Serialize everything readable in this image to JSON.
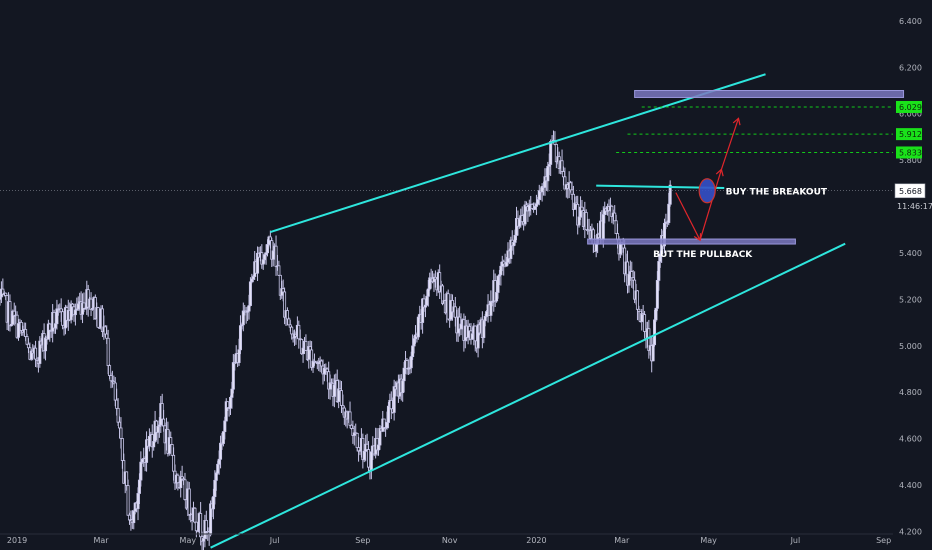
{
  "chart_data": {
    "type": "candlestick",
    "x_axis": {
      "range": [
        "2018-12-20",
        "2020-10-05"
      ],
      "ticks": [
        {
          "date": "2019-01-01",
          "label": "2019"
        },
        {
          "date": "2019-03-01",
          "label": "Mar"
        },
        {
          "date": "2019-05-01",
          "label": "May"
        },
        {
          "date": "2019-07-01",
          "label": "Jul"
        },
        {
          "date": "2019-09-01",
          "label": "Sep"
        },
        {
          "date": "2019-11-01",
          "label": "Nov"
        },
        {
          "date": "2020-01-01",
          "label": "2020"
        },
        {
          "date": "2020-03-01",
          "label": "Mar"
        },
        {
          "date": "2020-05-01",
          "label": "May"
        },
        {
          "date": "2020-07-01",
          "label": "Jul"
        },
        {
          "date": "2020-09-01",
          "label": "Sep"
        }
      ]
    },
    "y_axis": {
      "range": [
        4.12,
        6.49
      ],
      "position": "right",
      "ticks": [
        "6.400",
        "6.200",
        "6.000",
        "5.800",
        "5.400",
        "5.200",
        "5.000",
        "4.800",
        "4.600",
        "4.400",
        "4.200"
      ]
    },
    "price_path": [
      [
        "2018-12-20",
        5.2
      ],
      [
        "2019-01-05",
        5.05
      ],
      [
        "2019-01-12",
        4.93
      ],
      [
        "2019-01-26",
        5.1
      ],
      [
        "2019-02-10",
        5.15
      ],
      [
        "2019-02-20",
        5.22
      ],
      [
        "2019-03-03",
        5.08
      ],
      [
        "2019-03-10",
        4.8
      ],
      [
        "2019-03-16",
        4.5
      ],
      [
        "2019-03-22",
        4.22
      ],
      [
        "2019-04-01",
        4.55
      ],
      [
        "2019-04-12",
        4.7
      ],
      [
        "2019-04-22",
        4.45
      ],
      [
        "2019-05-02",
        4.32
      ],
      [
        "2019-05-10",
        4.22
      ],
      [
        "2019-05-15",
        4.18
      ],
      [
        "2019-05-22",
        4.5
      ],
      [
        "2019-06-01",
        4.85
      ],
      [
        "2019-06-12",
        5.2
      ],
      [
        "2019-06-20",
        5.4
      ],
      [
        "2019-06-30",
        5.43
      ],
      [
        "2019-07-08",
        5.15
      ],
      [
        "2019-07-20",
        5.0
      ],
      [
        "2019-08-05",
        4.9
      ],
      [
        "2019-08-20",
        4.72
      ],
      [
        "2019-09-05",
        4.5
      ],
      [
        "2019-09-18",
        4.7
      ],
      [
        "2019-10-05",
        4.95
      ],
      [
        "2019-10-20",
        5.32
      ],
      [
        "2019-11-05",
        5.1
      ],
      [
        "2019-11-20",
        5.02
      ],
      [
        "2019-12-05",
        5.28
      ],
      [
        "2019-12-20",
        5.55
      ],
      [
        "2020-01-05",
        5.68
      ],
      [
        "2020-01-12",
        5.88
      ],
      [
        "2020-01-20",
        5.7
      ],
      [
        "2020-02-01",
        5.55
      ],
      [
        "2020-02-12",
        5.45
      ],
      [
        "2020-02-22",
        5.6
      ],
      [
        "2020-03-03",
        5.35
      ],
      [
        "2020-03-12",
        5.18
      ],
      [
        "2020-03-22",
        4.98
      ],
      [
        "2020-03-29",
        5.45
      ],
      [
        "2020-04-04",
        5.64
      ]
    ],
    "channel": {
      "upper": {
        "from": [
          "2019-06-28",
          5.49
        ],
        "to": [
          "2020-06-10",
          6.17
        ]
      },
      "lower": {
        "from": [
          "2019-05-17",
          4.13
        ],
        "to": [
          "2020-08-05",
          5.44
        ]
      }
    },
    "zones": [
      {
        "from": "2020-03-10",
        "to": "2020-09-15",
        "low": 6.07,
        "high": 6.1
      },
      {
        "from": "2020-02-06",
        "to": "2020-07-01",
        "low": 5.44,
        "high": 5.46
      }
    ],
    "breakout_line": {
      "from": [
        "2020-02-12",
        5.69
      ],
      "to": [
        "2020-05-12",
        5.68
      ]
    },
    "target_lines": [
      {
        "value": 6.029,
        "label": "6.029",
        "from": "2020-03-15"
      },
      {
        "value": 5.912,
        "label": "5.912",
        "from": "2020-03-05"
      },
      {
        "value": 5.833,
        "label": "5.833",
        "from": "2020-02-26"
      }
    ],
    "last_price": {
      "value": 5.668,
      "label": "5.668",
      "countdown": "11:46:17"
    },
    "annotations": [
      {
        "text": "BUY THE BREAKOUT",
        "date": "2020-05-13",
        "value": 5.665
      },
      {
        "text": "BUT THE PULLBACK",
        "date": "2020-03-23",
        "value": 5.395
      }
    ],
    "projection_arrows": [
      [
        [
          "2020-04-08",
          5.66
        ],
        [
          "2020-04-25",
          5.455
        ]
      ],
      [
        [
          "2020-04-25",
          5.455
        ],
        [
          "2020-05-10",
          5.76
        ]
      ],
      [
        [
          "2020-05-10",
          5.76
        ],
        [
          "2020-05-22",
          5.98
        ]
      ]
    ],
    "breakout_marker": {
      "date": "2020-04-30",
      "value": 5.668
    },
    "colors": {
      "background": "#131722",
      "candles": "#c7c5e8",
      "channel": "#2ee6dd",
      "zone": "#7b78c0",
      "targets": "#12c91a",
      "tag": "#1ae21a",
      "arrows": "#e0262b",
      "marker": "#3550c8",
      "last_price": "#ffffff"
    }
  }
}
